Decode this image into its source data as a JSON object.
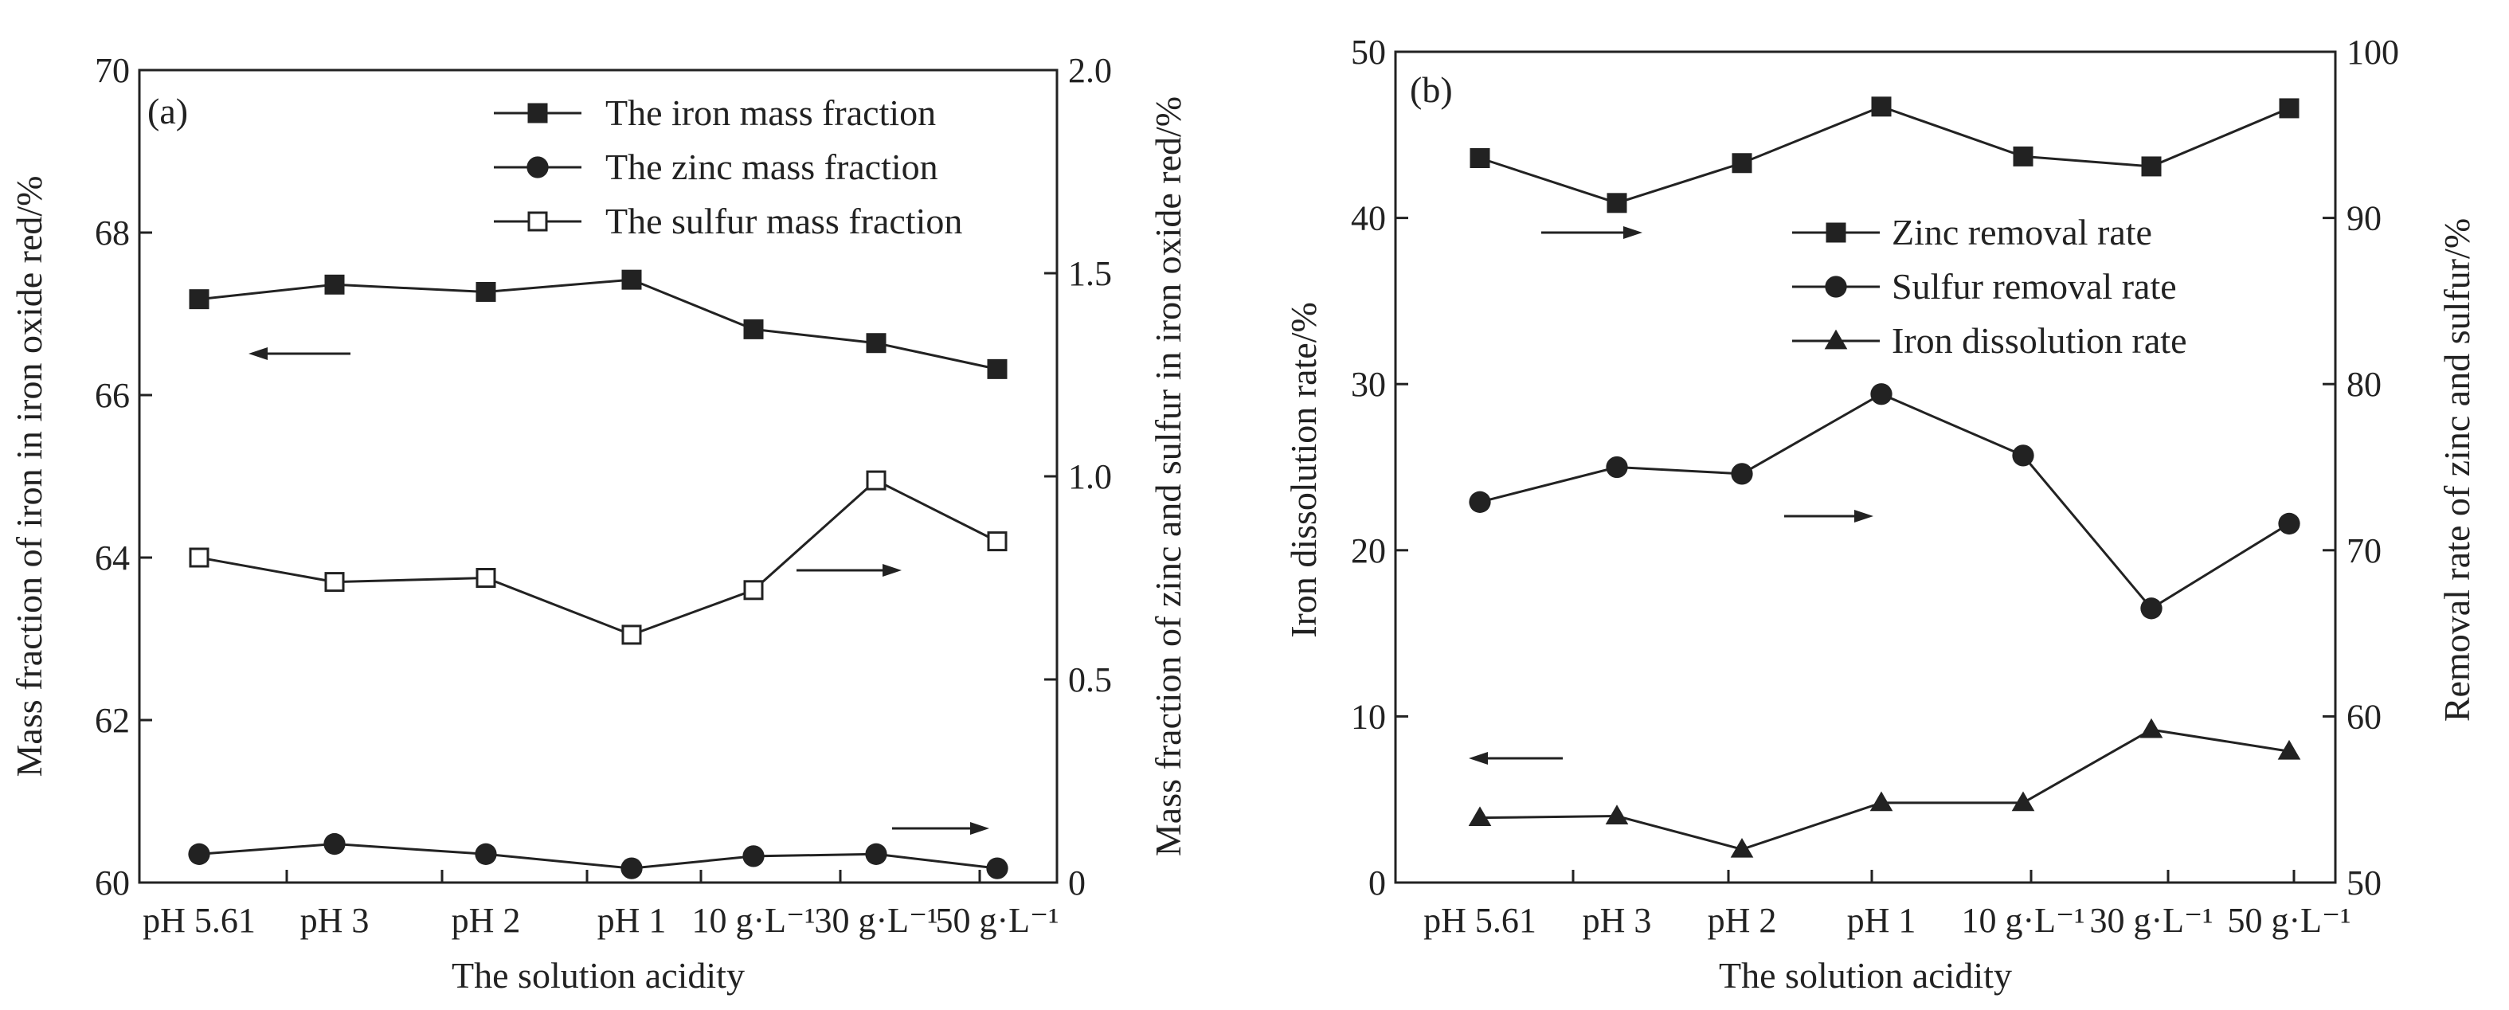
{
  "chart_data": [
    {
      "type": "line",
      "panel_label": "(a)",
      "categories": [
        "pH 5.61",
        "pH 3",
        "pH 2",
        "pH 1",
        "10 g·L⁻¹",
        "30 g·L⁻¹",
        "50 g·L⁻¹"
      ],
      "xlabel": "The solution acidity",
      "ylabel_left": "Mass fraction of iron in iron oxide red/%",
      "ylabel_right": "Mass fraction of zinc and sulfur in iron oxide red/%",
      "ylim_left": [
        60,
        70
      ],
      "ylim_right": [
        0,
        2.0
      ],
      "yticks_left": [
        "60",
        "62",
        "64",
        "66",
        "68",
        "70"
      ],
      "yticks_right": [
        "0",
        "0.5",
        "1.0",
        "1.5",
        "2.0"
      ],
      "grid": false,
      "legend_position": "top-right",
      "series": [
        {
          "name": "The iron mass fraction",
          "marker": "filled-square",
          "axis": "left",
          "values": [
            67.18,
            67.36,
            67.27,
            67.42,
            66.81,
            66.64,
            66.32
          ]
        },
        {
          "name": "The zinc mass fraction",
          "marker": "filled-circle",
          "axis": "right",
          "values": [
            0.07,
            0.095,
            0.07,
            0.035,
            0.065,
            0.07,
            0.035
          ]
        },
        {
          "name": "The sulfur mass fraction",
          "marker": "open-square",
          "axis": "right",
          "values": [
            0.8,
            0.74,
            0.75,
            0.61,
            0.72,
            0.99,
            0.84
          ]
        }
      ]
    },
    {
      "type": "line",
      "panel_label": "(b)",
      "categories": [
        "pH 5.61",
        "pH 3",
        "pH 2",
        "pH 1",
        "10 g·L⁻¹",
        "30 g·L⁻¹",
        "50 g·L⁻¹"
      ],
      "xlabel": "The solution acidity",
      "ylabel_left": "Iron dissolution rate/%",
      "ylabel_right": "Removal rate of zinc and sulfur/%",
      "ylim_left": [
        0,
        50
      ],
      "ylim_right": [
        50,
        100
      ],
      "yticks_left": [
        "0",
        "10",
        "20",
        "30",
        "40",
        "50"
      ],
      "yticks_right": [
        "50",
        "60",
        "70",
        "80",
        "90",
        "100"
      ],
      "grid": false,
      "legend_position": "top-right",
      "series": [
        {
          "name": "Zinc removal rate",
          "marker": "filled-square",
          "axis": "right",
          "values": [
            93.6,
            90.9,
            93.3,
            96.7,
            93.7,
            93.1,
            96.6
          ]
        },
        {
          "name": "Sulfur removal rate",
          "marker": "filled-circle",
          "axis": "right",
          "values": [
            72.9,
            75.0,
            74.6,
            79.4,
            75.7,
            66.5,
            71.6
          ]
        },
        {
          "name": "Iron dissolution rate",
          "marker": "filled-triangle",
          "axis": "left",
          "values": [
            3.9,
            4.0,
            2.0,
            4.8,
            4.8,
            9.2,
            7.9
          ]
        }
      ]
    }
  ]
}
